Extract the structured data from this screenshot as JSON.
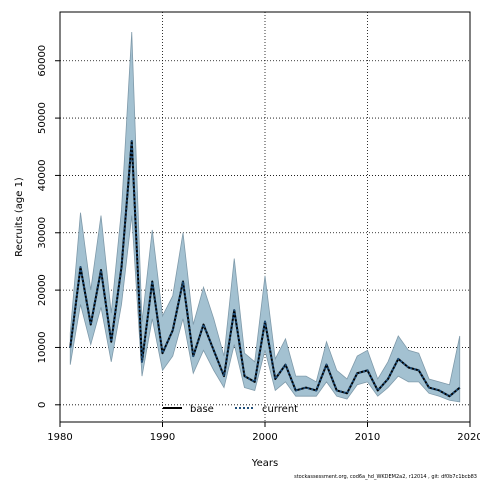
{
  "chart_data": {
    "type": "line",
    "xlabel": "Years",
    "ylabel": "Recruits (age 1)",
    "xlim": [
      1980,
      2020
    ],
    "ylim": [
      0,
      65000
    ],
    "xticks": [
      1980,
      1990,
      2000,
      2010,
      2020
    ],
    "yticks": [
      0,
      10000,
      20000,
      30000,
      40000,
      50000,
      60000
    ],
    "grid": true,
    "legend_position": "bottom-center",
    "x": [
      1981,
      1982,
      1983,
      1984,
      1985,
      1986,
      1987,
      1988,
      1989,
      1990,
      1991,
      1992,
      1993,
      1994,
      1995,
      1996,
      1997,
      1998,
      1999,
      2000,
      2001,
      2002,
      2003,
      2004,
      2005,
      2006,
      2007,
      2008,
      2009,
      2010,
      2011,
      2012,
      2013,
      2014,
      2015,
      2016,
      2017,
      2018,
      2019
    ],
    "series": [
      {
        "name": "base",
        "color": "#000000",
        "values": [
          10000,
          24000,
          14000,
          23500,
          11000,
          24000,
          46000,
          7500,
          21500,
          9000,
          13000,
          21500,
          8500,
          14000,
          9500,
          5000,
          16500,
          5000,
          4000,
          14500,
          4500,
          7000,
          2500,
          3000,
          2500,
          7000,
          2500,
          2000,
          5500,
          6000,
          2500,
          4500,
          8000,
          6500,
          6000,
          3000,
          2500,
          1500,
          3000
        ]
      },
      {
        "name": "current",
        "color": "#1f4e79",
        "values": [
          10000,
          24000,
          14000,
          23500,
          11000,
          24000,
          46000,
          7500,
          21500,
          9000,
          13000,
          21500,
          8500,
          14000,
          9500,
          5000,
          16500,
          5000,
          4000,
          14500,
          4500,
          7000,
          2500,
          3000,
          2500,
          7000,
          2500,
          2000,
          5500,
          6000,
          2500,
          4500,
          8000,
          6500,
          6000,
          3000,
          2500,
          1500,
          3000
        ]
      }
    ],
    "band": {
      "color": "#a3c1d1",
      "stroke": "#7f9aaa",
      "upper": [
        12500,
        33500,
        20000,
        33000,
        16000,
        34000,
        65000,
        14500,
        30500,
        15500,
        19000,
        30000,
        14000,
        20500,
        15000,
        8500,
        25500,
        9000,
        7500,
        22500,
        8000,
        11500,
        5000,
        5000,
        4000,
        11000,
        6000,
        4500,
        8500,
        9500,
        4500,
        7500,
        12000,
        9500,
        9000,
        4500,
        4000,
        3500,
        12000
      ],
      "lower": [
        7000,
        17500,
        10500,
        17000,
        7500,
        17500,
        33000,
        5000,
        15000,
        6000,
        8500,
        15000,
        5500,
        9500,
        6000,
        3000,
        10500,
        3000,
        2500,
        9500,
        2500,
        4000,
        1500,
        1500,
        1500,
        4000,
        1500,
        1000,
        3500,
        4000,
        1500,
        3000,
        5000,
        4000,
        4000,
        2000,
        1500,
        800,
        500
      ]
    }
  },
  "legend": {
    "base": "base",
    "current": "current"
  },
  "footer": "stockassessment.org, cod6a_hd_WKDEM2a2, r12014 , git: df0b7c1bcb83"
}
